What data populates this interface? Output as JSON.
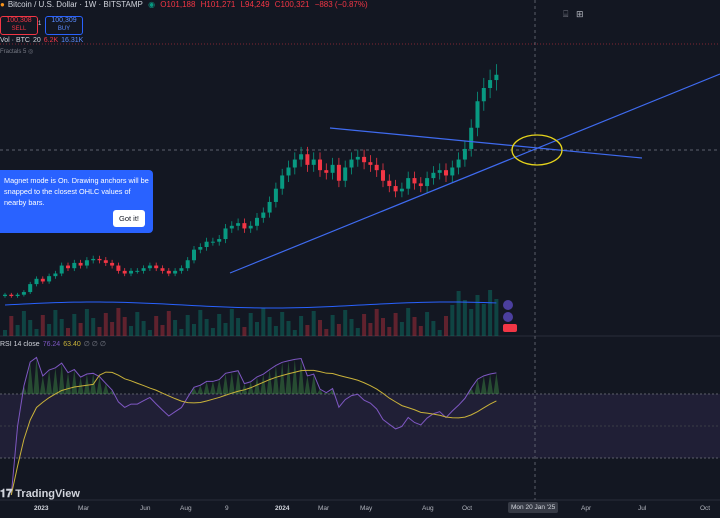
{
  "header": {
    "symbol": "Bitcoin / U.S. Dollar · 1W · BITSTAMP",
    "o": "O101,188",
    "h": "H101,271",
    "l": "L94,249",
    "c": "C100,321",
    "change": "−883 (−0.87%)"
  },
  "trade": {
    "sell_price": "100,308",
    "sell_label": "SELL",
    "spread": "1",
    "buy_price": "100,309",
    "buy_label": "BUY"
  },
  "volume_legend": {
    "label": "Vol · BTC",
    "length": "20",
    "v1": "6.2K",
    "v2": "16.31K"
  },
  "fractals_label": "Fractals 5",
  "rsi_legend": {
    "label": "RSI 14 close",
    "v1": "76.24",
    "v2": "63.40",
    "extras": "∅ ∅ ∅"
  },
  "tooltip": {
    "text": "Magnet mode is On. Drawing anchors will be snapped to the closest OHLC values of nearby bars.",
    "button": "Got it!"
  },
  "time_axis": [
    "2023",
    "Mar",
    "Jun",
    "Aug",
    "9",
    "2024",
    "Mar",
    "May",
    "Aug",
    "Oct",
    "Apr",
    "Jul",
    "Oct"
  ],
  "crosshair_date": "Mon 20 Jan '25",
  "logo": "TradingView",
  "colors": {
    "up": "#089981",
    "down": "#f23645",
    "accent": "#2962ff",
    "rsi": "#7e57c2",
    "ma": "#c9b23a"
  },
  "chart_data": {
    "type": "candlestick",
    "symbol": "BTCUSD",
    "interval": "1W",
    "approx_close_path_k_usd": [
      17,
      16.5,
      17,
      18,
      21,
      23,
      22,
      24,
      25,
      28,
      27,
      29,
      28,
      30,
      30.5,
      30,
      29,
      28,
      26,
      25,
      26,
      26,
      27,
      28,
      27,
      26,
      25,
      26,
      27,
      30,
      34,
      35,
      37,
      37,
      38,
      42,
      43,
      44,
      42,
      43,
      46,
      48,
      52,
      57,
      62,
      65,
      68,
      70,
      66,
      68,
      64,
      63,
      66,
      60,
      65,
      68,
      69,
      67,
      66,
      64,
      60,
      58,
      56,
      57,
      61,
      59,
      58,
      61,
      63,
      64,
      62,
      65,
      68,
      72,
      80,
      90,
      95,
      98,
      100
    ],
    "rsi_period": 14
  }
}
